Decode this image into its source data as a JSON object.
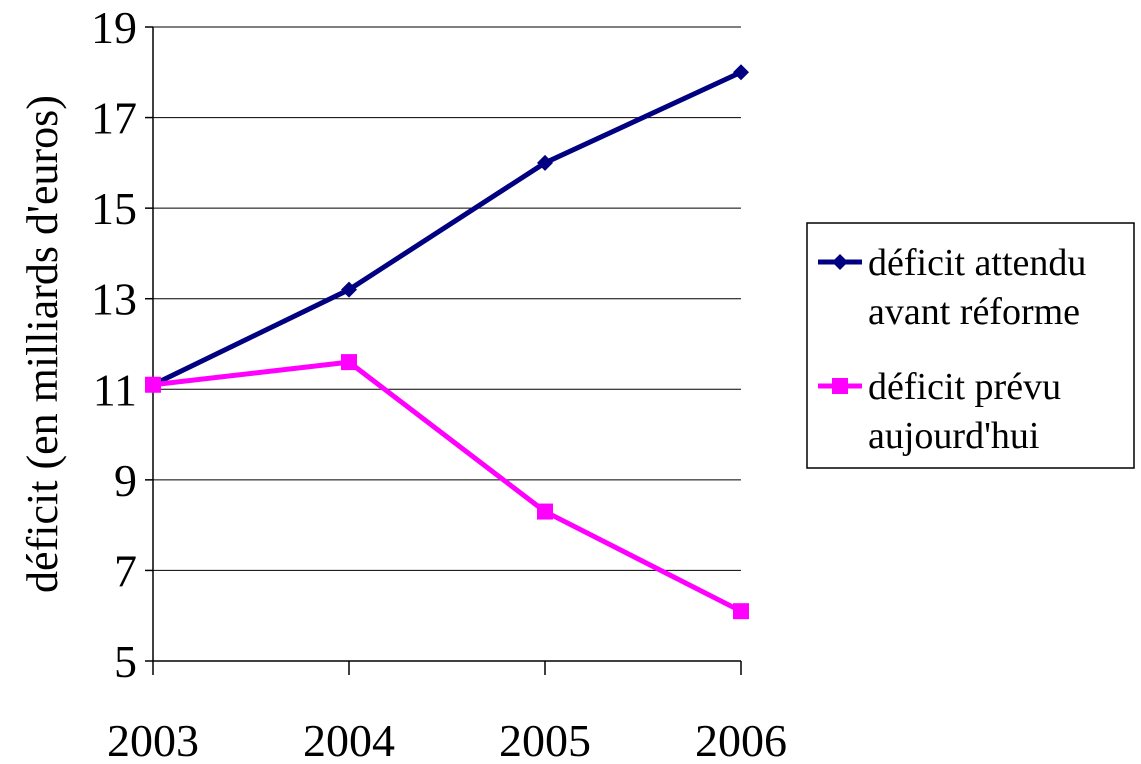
{
  "chart_data": {
    "type": "line",
    "title": "",
    "xlabel": "",
    "ylabel": "déficit (en milliards d'euros)",
    "categories": [
      "2003",
      "2004",
      "2005",
      "2006"
    ],
    "ylim": [
      5,
      19
    ],
    "yticks": [
      5,
      7,
      9,
      11,
      13,
      15,
      17,
      19
    ],
    "grid": true,
    "legend_position": "right",
    "series": [
      {
        "name_lines": [
          "déficit attendu",
          "avant réforme"
        ],
        "values": [
          11.1,
          13.2,
          16.0,
          18.0
        ],
        "color": "#000080",
        "marker": "diamond"
      },
      {
        "name_lines": [
          "déficit prévu",
          "aujourd'hui"
        ],
        "values": [
          11.1,
          11.6,
          8.3,
          6.1
        ],
        "color": "#ff00ff",
        "marker": "square"
      }
    ]
  }
}
